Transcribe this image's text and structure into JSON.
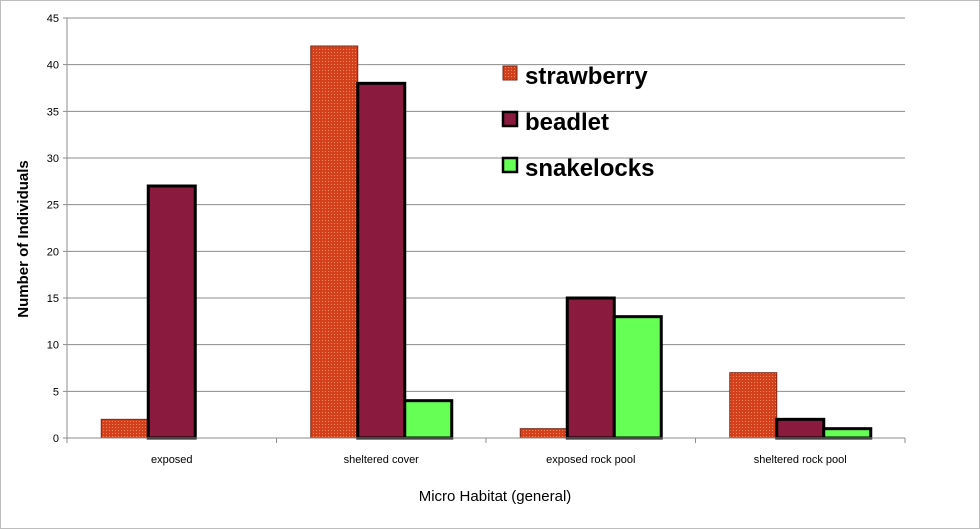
{
  "chart_data": {
    "type": "bar",
    "title": "",
    "xlabel": "Micro Habitat (general)",
    "ylabel": "Number of Individuals",
    "ylim": [
      0,
      45
    ],
    "yticks": [
      0,
      5,
      10,
      15,
      20,
      25,
      30,
      35,
      40,
      45
    ],
    "grid": true,
    "legend_position": "top-center",
    "categories": [
      "exposed",
      "sheltered cover",
      "exposed rock pool",
      "sheltered rock pool"
    ],
    "series": [
      {
        "name": "strawberry",
        "values": [
          2,
          42,
          1,
          7
        ],
        "color": "#d4401c",
        "pattern": "dotted"
      },
      {
        "name": "beadlet",
        "values": [
          27,
          38,
          15,
          2
        ],
        "color": "#8b1a3f"
      },
      {
        "name": "snakelocks",
        "values": [
          0,
          4,
          13,
          1
        ],
        "color": "#66ff55"
      }
    ]
  }
}
